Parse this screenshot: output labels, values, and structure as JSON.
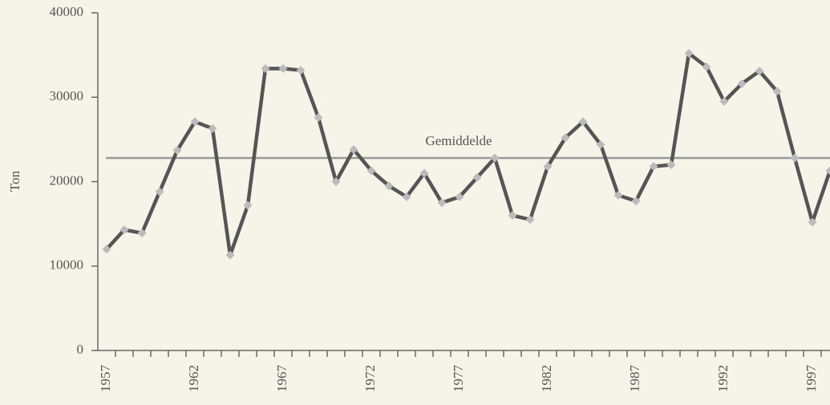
{
  "chart_data": {
    "type": "line",
    "y_label": "Ton",
    "categories": [
      "1957",
      null,
      null,
      null,
      null,
      "1962",
      null,
      null,
      null,
      null,
      "1967",
      null,
      null,
      null,
      null,
      "1972",
      null,
      null,
      null,
      null,
      "1977",
      null,
      null,
      null,
      null,
      "1982",
      null,
      null,
      null,
      null,
      "1987",
      null,
      null,
      null,
      null,
      "1992",
      null,
      null,
      null,
      null,
      "1997",
      null
    ],
    "series": [
      {
        "name": "Ton",
        "color": "#555555",
        "marker_color": "#bbbbbb",
        "values": [
          12000,
          14300,
          13900,
          18800,
          23700,
          27100,
          26300,
          11300,
          17200,
          33400,
          33400,
          33200,
          27600,
          20000,
          23800,
          21300,
          19500,
          18200,
          21000,
          17500,
          18200,
          20500,
          22800,
          16000,
          15500,
          21800,
          25200,
          27100,
          24400,
          18400,
          17700,
          21800,
          22000,
          35200,
          33600,
          29500,
          31600,
          33100,
          30700,
          22800,
          15200,
          21300
        ]
      }
    ],
    "mean": 22800,
    "mean_label": "Gemiddelde",
    "mean_color": "#999999",
    "ylim": [
      0,
      40000
    ],
    "yticks": [
      0,
      10000,
      20000,
      30000,
      40000
    ]
  }
}
